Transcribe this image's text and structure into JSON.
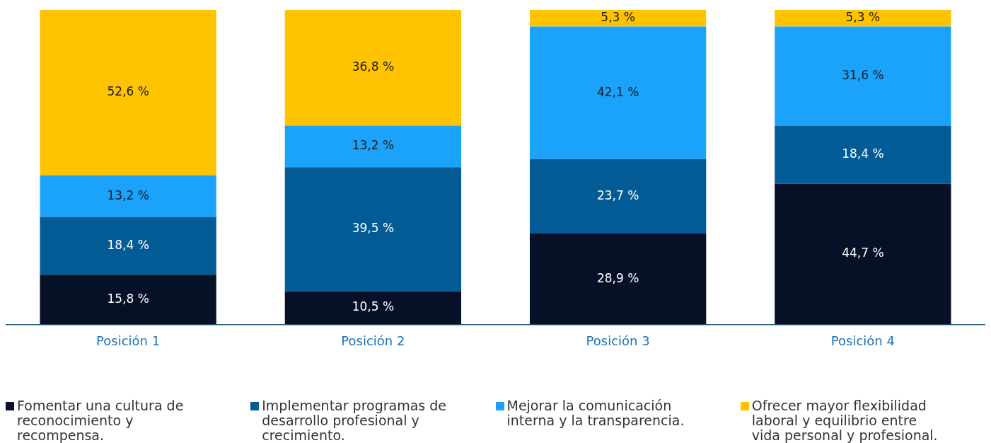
{
  "chart_data": {
    "type": "bar",
    "stacked": true,
    "categories": [
      "Posición 1",
      "Posición 2",
      "Posición 3",
      "Posición 4"
    ],
    "legend": "bottom",
    "grid": false,
    "data_labels": false,
    "series": [
      {
        "name": "Fomentar una cultura de reconocimiento y recompensa.",
        "color": "#061027",
        "values": [
          15.8,
          10.5,
          28.9,
          44.7
        ],
        "value_labels": [
          "15,8 %",
          "10,5 %",
          "28,9 %",
          "44,7 %"
        ]
      },
      {
        "name": "Implementar programas de desarrollo profesional y crecimiento.",
        "color": "#035b96",
        "values": [
          18.4,
          39.5,
          23.7,
          18.4
        ],
        "value_labels": [
          "18,4 %",
          "39,5 %",
          "23,7 %",
          "18,4 %"
        ]
      },
      {
        "name": "Mejorar la comunicación interna y la transparencia.",
        "color": "#1ba3fc",
        "values": [
          13.2,
          13.2,
          42.1,
          31.6
        ],
        "value_labels": [
          "13,2 %",
          "13,2 %",
          "42,1 %",
          "31,6 %"
        ]
      },
      {
        "name": "Ofrecer mayor flexibilidad laboral y equilibrio entre vida personal y profesional.",
        "color": "#ffc300",
        "values": [
          52.6,
          36.8,
          5.3,
          5.3
        ],
        "value_labels": [
          "52,6 %",
          "36,8 %",
          "5,3 %",
          "5,3 %"
        ]
      }
    ]
  }
}
